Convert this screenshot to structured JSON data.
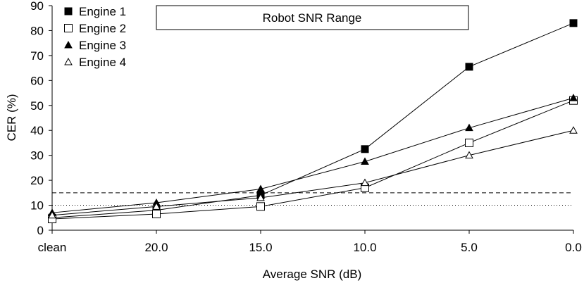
{
  "chart_data": {
    "type": "line",
    "categories": [
      "clean",
      "20.0",
      "15.0",
      "10.0",
      "5.0",
      "0.0"
    ],
    "xlabel": "Average SNR (dB)",
    "ylabel": "CER (%)",
    "ylim": [
      0,
      90
    ],
    "yticks": [
      0,
      10,
      20,
      30,
      40,
      50,
      60,
      70,
      80,
      90
    ],
    "grid": false,
    "legend_position": "top-left",
    "annotation": "Robot SNR Range",
    "series": [
      {
        "name": "Engine 1",
        "marker": "square-filled",
        "values": [
          5,
          8,
          14,
          32.5,
          65.5,
          83
        ]
      },
      {
        "name": "Engine 2",
        "marker": "square-open",
        "values": [
          4.5,
          6.5,
          9.5,
          17,
          35,
          52
        ]
      },
      {
        "name": "Engine 3",
        "marker": "triangle-filled",
        "values": [
          7,
          11,
          16.5,
          27.5,
          41,
          53
        ]
      },
      {
        "name": "Engine 4",
        "marker": "triangle-open",
        "values": [
          6,
          9.5,
          13,
          19,
          30,
          40
        ]
      }
    ],
    "reference_lines": [
      {
        "y": 15,
        "style": "dashed"
      },
      {
        "y": 10,
        "style": "dotted"
      }
    ]
  }
}
